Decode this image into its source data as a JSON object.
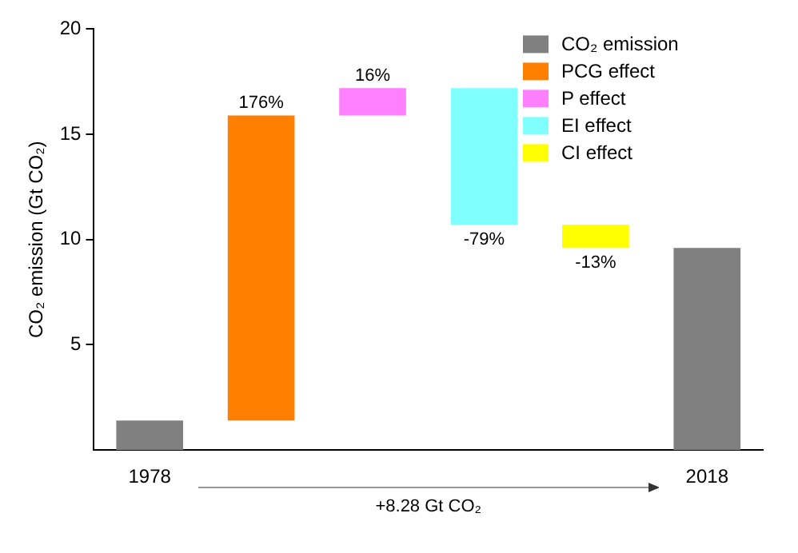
{
  "chart_data": {
    "type": "bar",
    "ylabel": "CO₂ emission (Gt CO₂)",
    "xlabel": "+8.28 Gt CO₂",
    "categories": [
      "1978",
      null,
      null,
      null,
      null,
      "2018"
    ],
    "series": [
      {
        "name": "CO₂ emission",
        "color": "#808080",
        "values": [
          1.4,
          null,
          null,
          null,
          null,
          9.6
        ],
        "base": [
          0,
          null,
          null,
          null,
          null,
          0
        ]
      },
      {
        "name": "PCG effect",
        "color": "#ff8000",
        "values": [
          null,
          14.5,
          null,
          null,
          null,
          null
        ],
        "base": [
          null,
          1.4,
          null,
          null,
          null,
          null
        ]
      },
      {
        "name": "P effect",
        "color": "#ff80ff",
        "values": [
          null,
          null,
          1.3,
          null,
          null,
          null
        ],
        "base": [
          null,
          null,
          15.9,
          null,
          null,
          null
        ]
      },
      {
        "name": "EI effect",
        "color": "#80ffff",
        "values": [
          null,
          null,
          null,
          -6.5,
          null,
          null
        ],
        "base": [
          null,
          null,
          null,
          17.2,
          null,
          null
        ]
      },
      {
        "name": "CI effect",
        "color": "#ffff00",
        "values": [
          null,
          null,
          null,
          null,
          -1.1,
          null
        ],
        "base": [
          null,
          null,
          null,
          null,
          10.7,
          null
        ]
      }
    ],
    "value_labels": [
      null,
      "176%",
      "16%",
      "-79%",
      "-13%",
      null
    ],
    "ylim": [
      0,
      20
    ],
    "yticks": [
      5,
      10,
      15,
      20
    ],
    "grid": false,
    "legend": "top right"
  }
}
